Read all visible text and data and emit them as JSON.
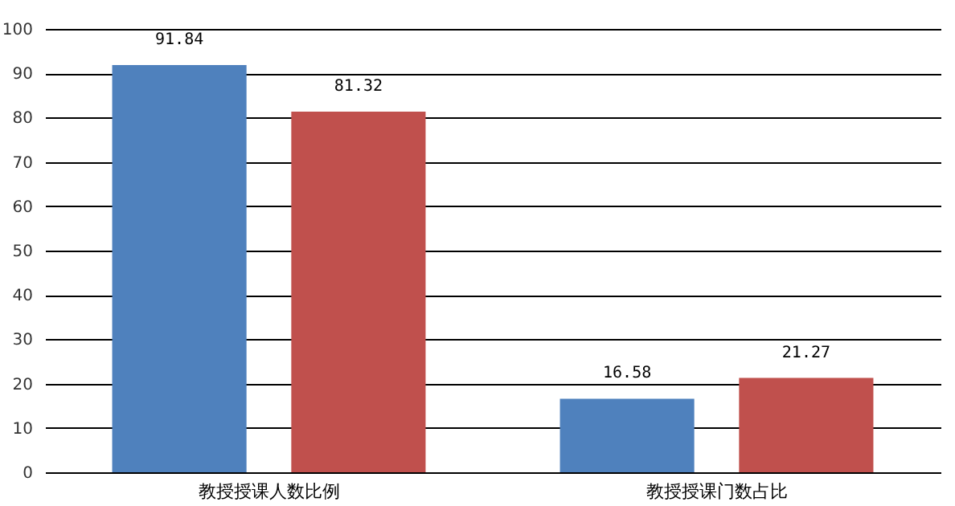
{
  "chart_data": {
    "type": "bar",
    "categories": [
      "教授授课人数比例",
      "教授授课门数占比"
    ],
    "series": [
      {
        "color": "#4f81bd",
        "values": [
          91.84,
          16.58
        ]
      },
      {
        "color": "#c0504d",
        "values": [
          81.32,
          21.27
        ]
      }
    ],
    "ylim": [
      0,
      100
    ],
    "yticks": [
      0,
      10,
      20,
      30,
      40,
      50,
      60,
      70,
      80,
      90,
      100
    ],
    "grid": "y",
    "data_labels": true
  }
}
